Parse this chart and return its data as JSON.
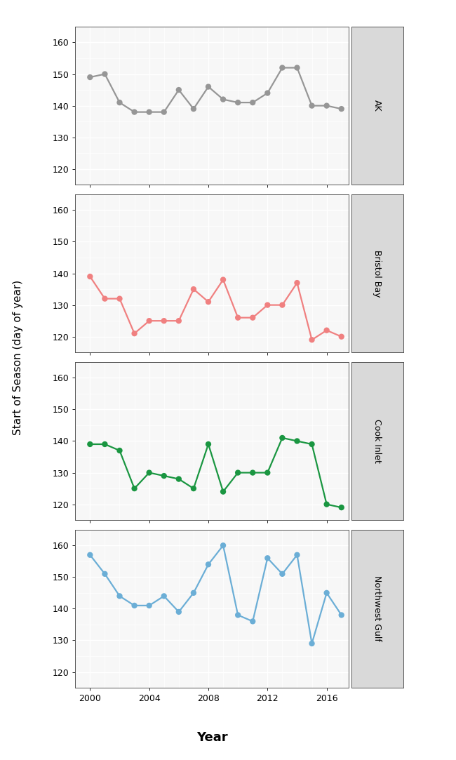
{
  "ak_years": [
    2000,
    2001,
    2002,
    2003,
    2004,
    2005,
    2006,
    2007,
    2008,
    2009,
    2010,
    2011,
    2012,
    2013,
    2014,
    2015,
    2016,
    2017
  ],
  "ak_vals": [
    149,
    150,
    141,
    138,
    138,
    138,
    145,
    139,
    146,
    142,
    141,
    141,
    144,
    152,
    152,
    140,
    140,
    139
  ],
  "bb_years": [
    2000,
    2001,
    2002,
    2003,
    2004,
    2005,
    2006,
    2007,
    2008,
    2009,
    2010,
    2011,
    2012,
    2013,
    2014,
    2015,
    2016,
    2017
  ],
  "bb_vals": [
    139,
    132,
    132,
    121,
    125,
    125,
    125,
    135,
    131,
    138,
    126,
    126,
    130,
    130,
    137,
    119,
    122,
    120
  ],
  "ci_years": [
    2000,
    2001,
    2002,
    2003,
    2004,
    2005,
    2006,
    2007,
    2008,
    2009,
    2010,
    2011,
    2012,
    2013,
    2014,
    2015,
    2016,
    2017
  ],
  "ci_vals": [
    139,
    139,
    137,
    125,
    130,
    129,
    128,
    125,
    139,
    124,
    130,
    130,
    130,
    141,
    140,
    139,
    120,
    119
  ],
  "nw_years": [
    2000,
    2001,
    2002,
    2003,
    2004,
    2005,
    2006,
    2007,
    2008,
    2009,
    2010,
    2011,
    2012,
    2013,
    2014,
    2015,
    2016,
    2017
  ],
  "nw_vals": [
    157,
    151,
    144,
    141,
    141,
    144,
    139,
    145,
    154,
    160,
    138,
    136,
    156,
    151,
    157,
    129,
    145,
    138
  ],
  "color_AK": "#969696",
  "color_Bristol_Bay": "#f08080",
  "color_Cook_Inlet": "#1a9641",
  "color_Northwest_Gulf": "#6baed6",
  "yticks": [
    120,
    130,
    140,
    150,
    160
  ],
  "ylim": [
    115,
    165
  ],
  "xlim": [
    1999.0,
    2017.5
  ],
  "xticks": [
    2000,
    2004,
    2008,
    2012,
    2016
  ],
  "xlabel": "Year",
  "ylabel": "Start of Season (day of year)",
  "panel_labels": [
    "AK",
    "Bristol Bay",
    "Cook Inlet",
    "Northwest Gulf"
  ],
  "panel_bg": "#f7f7f7",
  "fig_bg": "#ffffff",
  "grid_color": "#ffffff",
  "strip_bg": "#d9d9d9",
  "line_width": 1.6,
  "marker_size": 6
}
